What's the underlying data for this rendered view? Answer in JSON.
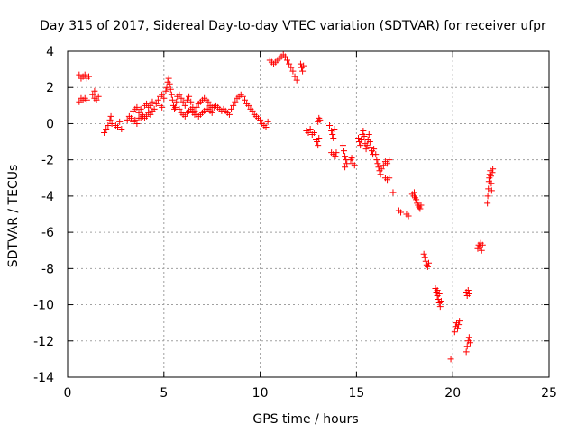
{
  "chart_data": {
    "type": "scatter",
    "title": "Day 315 of 2017, Sidereal Day-to-day VTEC variation (SDTVAR) for receiver ufpr",
    "xlabel": "GPS time / hours",
    "ylabel": "SDTVAR / TECUs",
    "xlim": [
      0,
      25
    ],
    "ylim": [
      -14,
      4
    ],
    "xticks": [
      0,
      5,
      10,
      15,
      20,
      25
    ],
    "yticks": [
      -14,
      -12,
      -10,
      -8,
      -6,
      -4,
      -2,
      0,
      2,
      4
    ],
    "grid": true,
    "marker": "+",
    "marker_color": "#ff0000",
    "series": [
      {
        "name": "SDTVAR",
        "points": [
          [
            0.6,
            2.7
          ],
          [
            0.7,
            2.5
          ],
          [
            0.8,
            2.6
          ],
          [
            0.9,
            2.7
          ],
          [
            1.0,
            2.5
          ],
          [
            1.1,
            2.6
          ],
          [
            0.6,
            1.2
          ],
          [
            0.7,
            1.4
          ],
          [
            0.8,
            1.3
          ],
          [
            0.9,
            1.4
          ],
          [
            1.0,
            1.3
          ],
          [
            1.3,
            1.6
          ],
          [
            1.4,
            1.4
          ],
          [
            1.5,
            1.3
          ],
          [
            1.6,
            1.5
          ],
          [
            1.4,
            1.8
          ],
          [
            1.9,
            -0.5
          ],
          [
            2.0,
            -0.3
          ],
          [
            2.1,
            -0.1
          ],
          [
            2.2,
            0.2
          ],
          [
            2.25,
            0.4
          ],
          [
            2.3,
            0.0
          ],
          [
            2.5,
            -0.1
          ],
          [
            2.6,
            -0.2
          ],
          [
            2.7,
            0.1
          ],
          [
            2.8,
            -0.3
          ],
          [
            3.1,
            0.2
          ],
          [
            3.2,
            0.4
          ],
          [
            3.3,
            0.3
          ],
          [
            3.4,
            0.1
          ],
          [
            3.5,
            0.2
          ],
          [
            3.6,
            0.0
          ],
          [
            3.7,
            0.3
          ],
          [
            3.4,
            0.7
          ],
          [
            3.5,
            0.8
          ],
          [
            3.6,
            0.9
          ],
          [
            3.7,
            0.6
          ],
          [
            3.8,
            0.8
          ],
          [
            3.9,
            0.5
          ],
          [
            3.8,
            0.3
          ],
          [
            3.9,
            0.4
          ],
          [
            4.0,
            0.3
          ],
          [
            4.1,
            0.4
          ],
          [
            4.0,
            1.0
          ],
          [
            4.1,
            1.1
          ],
          [
            4.2,
            0.9
          ],
          [
            4.3,
            1.0
          ],
          [
            4.4,
            1.2
          ],
          [
            4.5,
            0.8
          ],
          [
            4.2,
            0.6
          ],
          [
            4.3,
            0.5
          ],
          [
            4.4,
            0.7
          ],
          [
            4.6,
            1.1
          ],
          [
            4.7,
            1.3
          ],
          [
            4.8,
            1.5
          ],
          [
            4.9,
            1.6
          ],
          [
            5.0,
            1.4
          ],
          [
            4.8,
            1.0
          ],
          [
            4.9,
            0.9
          ],
          [
            5.1,
            1.8
          ],
          [
            5.15,
            2.0
          ],
          [
            5.2,
            2.3
          ],
          [
            5.25,
            2.5
          ],
          [
            5.3,
            2.2
          ],
          [
            5.35,
            1.9
          ],
          [
            5.4,
            1.6
          ],
          [
            5.45,
            1.3
          ],
          [
            5.5,
            1.0
          ],
          [
            5.55,
            0.8
          ],
          [
            5.6,
            0.9
          ],
          [
            5.65,
            1.2
          ],
          [
            5.7,
            1.5
          ],
          [
            5.8,
            1.6
          ],
          [
            5.9,
            1.4
          ],
          [
            6.0,
            1.2
          ],
          [
            6.1,
            1.0
          ],
          [
            6.2,
            1.3
          ],
          [
            6.3,
            1.5
          ],
          [
            6.4,
            1.2
          ],
          [
            6.5,
            0.9
          ],
          [
            6.6,
            0.7
          ],
          [
            6.7,
            0.5
          ],
          [
            5.8,
            0.8
          ],
          [
            5.9,
            0.6
          ],
          [
            6.0,
            0.5
          ],
          [
            6.1,
            0.4
          ],
          [
            6.2,
            0.6
          ],
          [
            6.3,
            0.7
          ],
          [
            6.4,
            0.8
          ],
          [
            6.5,
            0.6
          ],
          [
            6.6,
            0.5
          ],
          [
            6.7,
            0.9
          ],
          [
            6.8,
            1.1
          ],
          [
            6.9,
            1.2
          ],
          [
            7.0,
            1.3
          ],
          [
            7.1,
            1.4
          ],
          [
            7.2,
            1.3
          ],
          [
            7.3,
            1.2
          ],
          [
            7.4,
            1.0
          ],
          [
            7.5,
            0.9
          ],
          [
            6.8,
            0.4
          ],
          [
            6.9,
            0.5
          ],
          [
            7.0,
            0.6
          ],
          [
            7.1,
            0.7
          ],
          [
            7.2,
            0.8
          ],
          [
            7.3,
            0.8
          ],
          [
            7.4,
            0.7
          ],
          [
            7.5,
            0.6
          ],
          [
            7.6,
            0.9
          ],
          [
            7.7,
            1.0
          ],
          [
            7.8,
            0.9
          ],
          [
            7.9,
            0.8
          ],
          [
            8.0,
            0.7
          ],
          [
            8.1,
            0.8
          ],
          [
            8.2,
            0.7
          ],
          [
            8.3,
            0.6
          ],
          [
            8.4,
            0.5
          ],
          [
            8.5,
            0.8
          ],
          [
            8.6,
            1.0
          ],
          [
            8.7,
            1.2
          ],
          [
            8.8,
            1.4
          ],
          [
            8.9,
            1.5
          ],
          [
            9.0,
            1.6
          ],
          [
            9.1,
            1.5
          ],
          [
            9.2,
            1.3
          ],
          [
            9.3,
            1.1
          ],
          [
            9.4,
            1.0
          ],
          [
            9.5,
            0.8
          ],
          [
            9.6,
            0.7
          ],
          [
            9.7,
            0.5
          ],
          [
            9.8,
            0.4
          ],
          [
            9.9,
            0.3
          ],
          [
            10.0,
            0.2
          ],
          [
            10.1,
            0.0
          ],
          [
            10.2,
            -0.1
          ],
          [
            10.3,
            -0.2
          ],
          [
            10.4,
            0.1
          ],
          [
            10.5,
            3.5
          ],
          [
            10.6,
            3.4
          ],
          [
            10.7,
            3.3
          ],
          [
            10.8,
            3.4
          ],
          [
            10.9,
            3.5
          ],
          [
            11.0,
            3.6
          ],
          [
            11.1,
            3.7
          ],
          [
            11.2,
            3.8
          ],
          [
            11.3,
            3.7
          ],
          [
            11.4,
            3.5
          ],
          [
            11.5,
            3.3
          ],
          [
            11.6,
            3.1
          ],
          [
            11.7,
            2.9
          ],
          [
            11.8,
            2.6
          ],
          [
            11.9,
            2.4
          ],
          [
            12.1,
            3.3
          ],
          [
            12.15,
            3.1
          ],
          [
            12.2,
            2.9
          ],
          [
            12.25,
            3.2
          ],
          [
            12.4,
            -0.4
          ],
          [
            12.5,
            -0.5
          ],
          [
            12.6,
            -0.3
          ],
          [
            12.7,
            -0.6
          ],
          [
            12.8,
            -0.5
          ],
          [
            12.9,
            -0.9
          ],
          [
            12.95,
            -1.0
          ],
          [
            13.0,
            -1.2
          ],
          [
            13.05,
            -0.8
          ],
          [
            13.0,
            0.1
          ],
          [
            13.05,
            0.3
          ],
          [
            13.1,
            0.2
          ],
          [
            13.6,
            -0.1
          ],
          [
            13.7,
            -0.4
          ],
          [
            13.75,
            -0.6
          ],
          [
            13.8,
            -0.8
          ],
          [
            13.85,
            -0.3
          ],
          [
            13.7,
            -1.6
          ],
          [
            13.8,
            -1.7
          ],
          [
            13.9,
            -1.8
          ],
          [
            13.95,
            -1.6
          ],
          [
            14.3,
            -1.2
          ],
          [
            14.35,
            -1.5
          ],
          [
            14.4,
            -1.8
          ],
          [
            14.45,
            -2.0
          ],
          [
            14.5,
            -2.2
          ],
          [
            14.4,
            -2.4
          ],
          [
            14.7,
            -2.0
          ],
          [
            14.8,
            -2.2
          ],
          [
            14.9,
            -2.3
          ],
          [
            14.75,
            -1.9
          ],
          [
            15.1,
            -0.8
          ],
          [
            15.15,
            -1.0
          ],
          [
            15.2,
            -1.2
          ],
          [
            15.25,
            -0.9
          ],
          [
            15.3,
            -0.6
          ],
          [
            15.35,
            -0.4
          ],
          [
            15.4,
            -0.7
          ],
          [
            15.45,
            -1.1
          ],
          [
            15.5,
            -1.4
          ],
          [
            15.55,
            -1.2
          ],
          [
            15.6,
            -0.9
          ],
          [
            15.65,
            -0.6
          ],
          [
            15.7,
            -1.0
          ],
          [
            15.75,
            -1.3
          ],
          [
            15.8,
            -1.5
          ],
          [
            15.85,
            -1.7
          ],
          [
            15.9,
            -1.4
          ],
          [
            16.0,
            -1.7
          ],
          [
            16.05,
            -2.0
          ],
          [
            16.1,
            -2.2
          ],
          [
            16.15,
            -2.4
          ],
          [
            16.2,
            -2.6
          ],
          [
            16.25,
            -2.8
          ],
          [
            16.3,
            -2.5
          ],
          [
            16.4,
            -2.3
          ],
          [
            16.5,
            -2.1
          ],
          [
            16.6,
            -2.2
          ],
          [
            16.7,
            -2.0
          ],
          [
            16.5,
            -3.0
          ],
          [
            16.6,
            -3.1
          ],
          [
            16.7,
            -3.0
          ],
          [
            16.9,
            -3.8
          ],
          [
            17.2,
            -4.8
          ],
          [
            17.3,
            -4.9
          ],
          [
            17.6,
            -5.0
          ],
          [
            17.7,
            -5.1
          ],
          [
            17.9,
            -3.9
          ],
          [
            18.0,
            -4.0
          ],
          [
            18.05,
            -4.1
          ],
          [
            18.1,
            -4.2
          ],
          [
            18.15,
            -4.4
          ],
          [
            18.2,
            -4.5
          ],
          [
            18.25,
            -4.6
          ],
          [
            18.3,
            -4.7
          ],
          [
            18.35,
            -4.5
          ],
          [
            18.0,
            -3.8
          ],
          [
            18.5,
            -7.2
          ],
          [
            18.55,
            -7.4
          ],
          [
            18.6,
            -7.6
          ],
          [
            18.65,
            -7.8
          ],
          [
            18.7,
            -7.9
          ],
          [
            18.75,
            -7.7
          ],
          [
            19.1,
            -9.1
          ],
          [
            19.15,
            -9.3
          ],
          [
            19.2,
            -9.5
          ],
          [
            19.25,
            -9.7
          ],
          [
            19.3,
            -9.9
          ],
          [
            19.35,
            -10.1
          ],
          [
            19.4,
            -9.8
          ],
          [
            19.3,
            -9.4
          ],
          [
            19.2,
            -9.2
          ],
          [
            19.9,
            -13.0
          ],
          [
            20.1,
            -11.5
          ],
          [
            20.15,
            -11.2
          ],
          [
            20.2,
            -11.0
          ],
          [
            20.25,
            -11.3
          ],
          [
            20.3,
            -11.1
          ],
          [
            20.35,
            -10.9
          ],
          [
            20.7,
            -12.6
          ],
          [
            20.75,
            -12.3
          ],
          [
            20.8,
            -12.0
          ],
          [
            20.85,
            -11.8
          ],
          [
            20.9,
            -12.1
          ],
          [
            20.7,
            -9.3
          ],
          [
            20.75,
            -9.5
          ],
          [
            20.8,
            -9.2
          ],
          [
            20.85,
            -9.4
          ],
          [
            21.3,
            -6.9
          ],
          [
            21.35,
            -6.7
          ],
          [
            21.4,
            -6.8
          ],
          [
            21.45,
            -6.6
          ],
          [
            21.5,
            -7.0
          ],
          [
            21.55,
            -6.7
          ],
          [
            21.8,
            -4.4
          ],
          [
            21.82,
            -4.0
          ],
          [
            21.85,
            -3.6
          ],
          [
            21.88,
            -3.2
          ],
          [
            21.9,
            -3.0
          ],
          [
            21.92,
            -2.8
          ],
          [
            21.95,
            -2.6
          ],
          [
            21.98,
            -2.9
          ],
          [
            22.0,
            -3.3
          ],
          [
            22.02,
            -3.7
          ],
          [
            22.05,
            -2.7
          ],
          [
            22.08,
            -2.5
          ]
        ]
      }
    ]
  }
}
